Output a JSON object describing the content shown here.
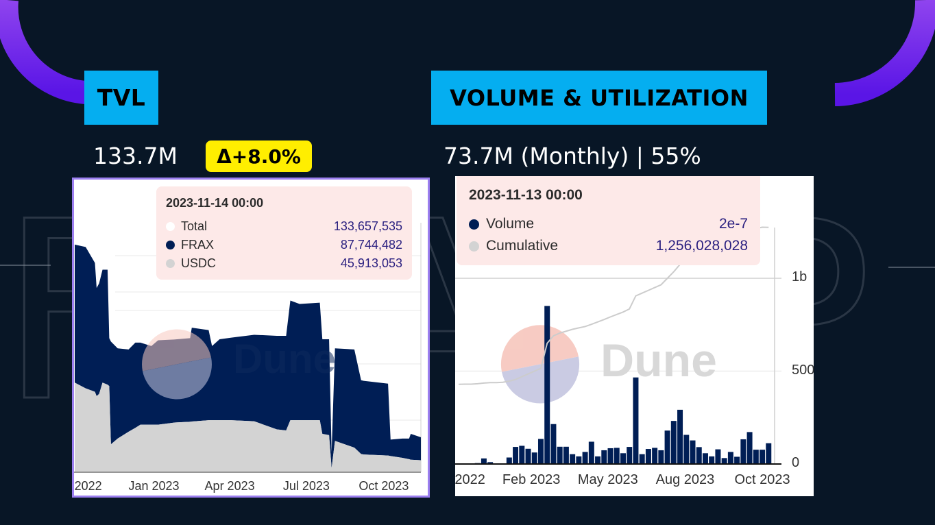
{
  "slide": {
    "background_watermark": "FRAXP",
    "colors": {
      "background": "#081626",
      "section_label": "#05aef0",
      "accent_arc": "#6a1fe8",
      "delta_badge": "#ffee00",
      "frame": "#9c7ff0"
    }
  },
  "tvl": {
    "label": "TVL",
    "value": "133.7M",
    "delta": "Δ+8.0%"
  },
  "volume": {
    "label": "VOLUME & UTILIZATION",
    "value": "73.7M (Monthly) | 55%"
  },
  "chart_data": [
    {
      "type": "area",
      "stacked": true,
      "watermark": "Dune",
      "units": "USD (millions)",
      "ylim": [
        0,
        1120
      ],
      "grid": true,
      "x_tick_labels": [
        {
          "label": "2022",
          "date": "2022-10-15"
        },
        {
          "label": "Jan 2023",
          "date": "2023-01-01"
        },
        {
          "label": "Apr 2023",
          "date": "2023-04-01"
        },
        {
          "label": "Jul 2023",
          "date": "2023-07-01"
        },
        {
          "label": "Oct 2023",
          "date": "2023-10-01"
        }
      ],
      "tooltip": {
        "date": "2023-11-14 00:00",
        "rows": [
          {
            "name": "Total",
            "value": "133,657,535",
            "color": "#ffffff"
          },
          {
            "name": "FRAX",
            "value": "87,744,482",
            "color": "#001e55"
          },
          {
            "name": "USDC",
            "value": "45,913,053",
            "color": "#d3d3d3"
          }
        ]
      },
      "series_colors": {
        "FRAX": "#001e55",
        "USDC": "#d3d3d3"
      },
      "x": [
        "2022-09-29",
        "2022-10-12",
        "2022-10-23",
        "2022-10-25",
        "2022-10-28",
        "2022-11-01",
        "2022-11-07",
        "2022-11-09",
        "2022-11-11",
        "2022-11-19",
        "2022-12-02",
        "2022-12-10",
        "2022-12-16",
        "2022-12-29",
        "2023-01-06",
        "2023-01-25",
        "2023-02-13",
        "2023-02-15",
        "2023-03-07",
        "2023-03-11",
        "2023-03-20",
        "2023-04-03",
        "2023-04-30",
        "2023-05-27",
        "2023-06-07",
        "2023-06-12",
        "2023-06-23",
        "2023-07-17",
        "2023-07-20",
        "2023-07-28",
        "2023-07-31",
        "2023-08-04",
        "2023-08-27",
        "2023-09-04",
        "2023-09-07",
        "2023-10-06",
        "2023-10-09",
        "2023-10-23",
        "2023-10-31",
        "2023-11-02",
        "2023-11-14"
      ],
      "total": [
        871,
        862,
        801,
        705,
        723,
        775,
        775,
        513,
        500,
        474,
        470,
        496,
        496,
        483,
        505,
        508,
        513,
        553,
        544,
        483,
        509,
        515,
        526,
        522,
        522,
        657,
        644,
        649,
        509,
        509,
        77,
        474,
        470,
        352,
        350,
        339,
        125,
        129,
        129,
        147,
        133.7
      ],
      "usdc": [
        343,
        321,
        308,
        291,
        300,
        343,
        335,
        330,
        107,
        129,
        155,
        170,
        182,
        182,
        182,
        190,
        193,
        194,
        199,
        199,
        199,
        199,
        195,
        164,
        160,
        199,
        199,
        199,
        147,
        142,
        16,
        120,
        94,
        70,
        68,
        64,
        62,
        55,
        50,
        48,
        45.9
      ]
    },
    {
      "type": "bar+line",
      "watermark": "Dune",
      "units": "USD (millions)",
      "ylim": [
        0,
        1300
      ],
      "y_tick_labels": [
        {
          "label": "0",
          "value": 0
        },
        {
          "label": "500",
          "value": 500
        },
        {
          "label": "1b",
          "value": 1000
        }
      ],
      "grid": true,
      "x_tick_labels": [
        {
          "label": "2022",
          "index": 1.8
        },
        {
          "label": "Feb 2023",
          "index": 11.5
        },
        {
          "label": "May 2023",
          "index": 23.6
        },
        {
          "label": "Aug 2023",
          "index": 35.8
        },
        {
          "label": "Oct 2023",
          "index": 48
        }
      ],
      "tooltip": {
        "date": "2023-11-13 00:00",
        "rows": [
          {
            "name": "Volume",
            "value": "2e-7",
            "color": "#001e55"
          },
          {
            "name": "Cumulative",
            "value": "1,256,028,028",
            "color": "#d3d3d3"
          }
        ]
      },
      "series": [
        {
          "name": "Volume",
          "kind": "bar",
          "color": "#001e55",
          "values": [
            0,
            0,
            0,
            5,
            30,
            10,
            0,
            2,
            35,
            92,
            98,
            82,
            62,
            135,
            851,
            215,
            93,
            93,
            53,
            41,
            65,
            120,
            41,
            74,
            85,
            87,
            58,
            92,
            466,
            53,
            81,
            87,
            74,
            180,
            232,
            292,
            157,
            127,
            91,
            58,
            41,
            79,
            32,
            65,
            39,
            133,
            172,
            77,
            77,
            112
          ]
        },
        {
          "name": "Cumulative",
          "kind": "line",
          "color": "#cccccc",
          "values": [
            429,
            430,
            430,
            432,
            436,
            438,
            438,
            440,
            446,
            455,
            470,
            485,
            500,
            515,
            650,
            690,
            705,
            715,
            725,
            733,
            740,
            752,
            765,
            778,
            792,
            805,
            818,
            835,
            905,
            920,
            935,
            950,
            965,
            1000,
            1035,
            1075,
            1105,
            1130,
            1150,
            1165,
            1178,
            1190,
            1200,
            1210,
            1220,
            1235,
            1255,
            1268,
            1275,
            1274
          ]
        }
      ]
    }
  ]
}
